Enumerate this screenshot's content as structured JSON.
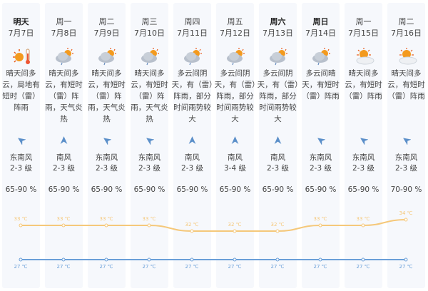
{
  "colors": {
    "high": "#f5c87a",
    "low": "#6a9fd8",
    "column_bg": "#f6f8fc",
    "arrow": "#5b8fc9"
  },
  "days": [
    {
      "day": "明天",
      "date": "7月7日",
      "icon": "sun-thermometer-icon",
      "desc": "晴天间多云，局地有短时（雷）阵雨",
      "wind_dir": "东南风",
      "wind_level": "2-3 级",
      "humidity": "65-90 %",
      "high": "33 ℃",
      "low": "27 ℃",
      "bold": true,
      "arrow": "southeast"
    },
    {
      "day": "周一",
      "date": "7月8日",
      "icon": "cloud-sun-rain-icon",
      "desc": "晴天间多云，有短时（雷）阵雨，天气炎热",
      "wind_dir": "南风",
      "wind_level": "2-3 级",
      "humidity": "65-90 %",
      "high": "33 ℃",
      "low": "27 ℃",
      "bold": false,
      "arrow": "south"
    },
    {
      "day": "周二",
      "date": "7月9日",
      "icon": "cloud-sun-rain-icon",
      "desc": "晴天间多云，有短时（雷）阵雨，天气炎热",
      "wind_dir": "东南风",
      "wind_level": "2-3 级",
      "humidity": "65-90 %",
      "high": "33 ℃",
      "low": "27 ℃",
      "bold": false,
      "arrow": "southeast"
    },
    {
      "day": "周三",
      "date": "7月10日",
      "icon": "cloud-sun-rain-icon",
      "desc": "晴天间多云，有短时（雷）阵雨，天气炎热",
      "wind_dir": "东南风",
      "wind_level": "2-3 级",
      "humidity": "65-90 %",
      "high": "33 ℃",
      "low": "27 ℃",
      "bold": false,
      "arrow": "southeast"
    },
    {
      "day": "周四",
      "date": "7月11日",
      "icon": "cloud-sun-rain-icon",
      "desc": "多云间阴天，有（雷）阵雨，部分时间雨势较大",
      "wind_dir": "南风",
      "wind_level": "2-3 级",
      "humidity": "65-90 %",
      "high": "32 ℃",
      "low": "27 ℃",
      "bold": false,
      "arrow": "south"
    },
    {
      "day": "周五",
      "date": "7月12日",
      "icon": "cloud-sun-rain-icon",
      "desc": "多云间阴天，有（雷）阵雨，部分时间雨势较大",
      "wind_dir": "南风",
      "wind_level": "3-4 级",
      "humidity": "65-90 %",
      "high": "32 ℃",
      "low": "27 ℃",
      "bold": false,
      "arrow": "south"
    },
    {
      "day": "周六",
      "date": "7月13日",
      "icon": "cloud-sun-rain-icon",
      "desc": "多云间阴天，有（雷）阵雨，部分时间雨势较大",
      "wind_dir": "南风",
      "wind_level": "2-3 级",
      "humidity": "65-90 %",
      "high": "32 ℃",
      "low": "27 ℃",
      "bold": true,
      "arrow": "south"
    },
    {
      "day": "周日",
      "date": "7月14日",
      "icon": "cloud-sun-rain-icon",
      "desc": "多云间晴天，有短时（雷）阵雨",
      "wind_dir": "东南风",
      "wind_level": "2-3 级",
      "humidity": "65-90 %",
      "high": "33 ℃",
      "low": "27 ℃",
      "bold": true,
      "arrow": "southeast"
    },
    {
      "day": "周一",
      "date": "7月15日",
      "icon": "sun-cloud-icon",
      "desc": "晴天间多云，有短时（雷）阵雨",
      "wind_dir": "东南风",
      "wind_level": "2-3 级",
      "humidity": "65-90 %",
      "high": "33 ℃",
      "low": "27 ℃",
      "bold": false,
      "arrow": "southeast"
    },
    {
      "day": "周二",
      "date": "7月16日",
      "icon": "sun-cloud-icon",
      "desc": "晴天间多云，有短时（雷）阵雨",
      "wind_dir": "东南风",
      "wind_level": "2-3 级",
      "humidity": "70-90 %",
      "high": "34 ℃",
      "low": "27 ℃",
      "bold": false,
      "arrow": "southeast"
    }
  ],
  "chart_data": {
    "type": "line",
    "categories": [
      "7月7日",
      "7月8日",
      "7月9日",
      "7月10日",
      "7月11日",
      "7月12日",
      "7月13日",
      "7月14日",
      "7月15日",
      "7月16日"
    ],
    "series": [
      {
        "values": [
          33,
          33,
          33,
          33,
          32,
          32,
          32,
          33,
          33,
          34
        ],
        "color": "#f5c87a"
      },
      {
        "values": [
          27,
          27,
          27,
          27,
          27,
          27,
          27,
          27,
          27,
          27
        ],
        "color": "#6a9fd8"
      }
    ],
    "unit": "℃"
  }
}
